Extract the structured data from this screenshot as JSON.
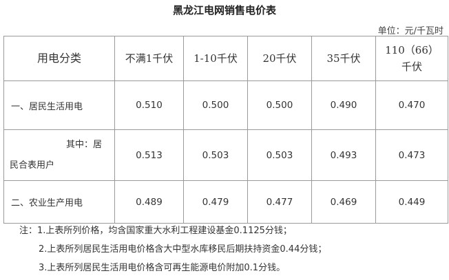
{
  "title": "黑龙江电网销售电价表",
  "unit": "单位：元/千瓦时",
  "table": {
    "headers": [
      "用电分类",
      "不满1千伏",
      "1-10千伏",
      "20千伏",
      "35千伏",
      "110（66）千伏"
    ],
    "rows": [
      {
        "category": "一、居民生活用电",
        "values": [
          "0.510",
          "0.500",
          "0.500",
          "0.490",
          "0.470"
        ]
      },
      {
        "category": "其中：居民合表用户",
        "values": [
          "0.513",
          "0.503",
          "0.503",
          "0.493",
          "0.473"
        ]
      },
      {
        "category": "二、农业生产用电",
        "values": [
          "0.489",
          "0.479",
          "0.477",
          "0.469",
          "0.449"
        ]
      }
    ]
  },
  "notes": [
    "注：1.上表所列价格，均含国家重大水利工程建设基金0.1125分钱；",
    "2.上表所列居民生活用电价格含大中型水库移民后期扶持资金0.44分钱；",
    "3.上表所列居民生活用电价格含可再生能源电价附加0.1分钱。"
  ]
}
